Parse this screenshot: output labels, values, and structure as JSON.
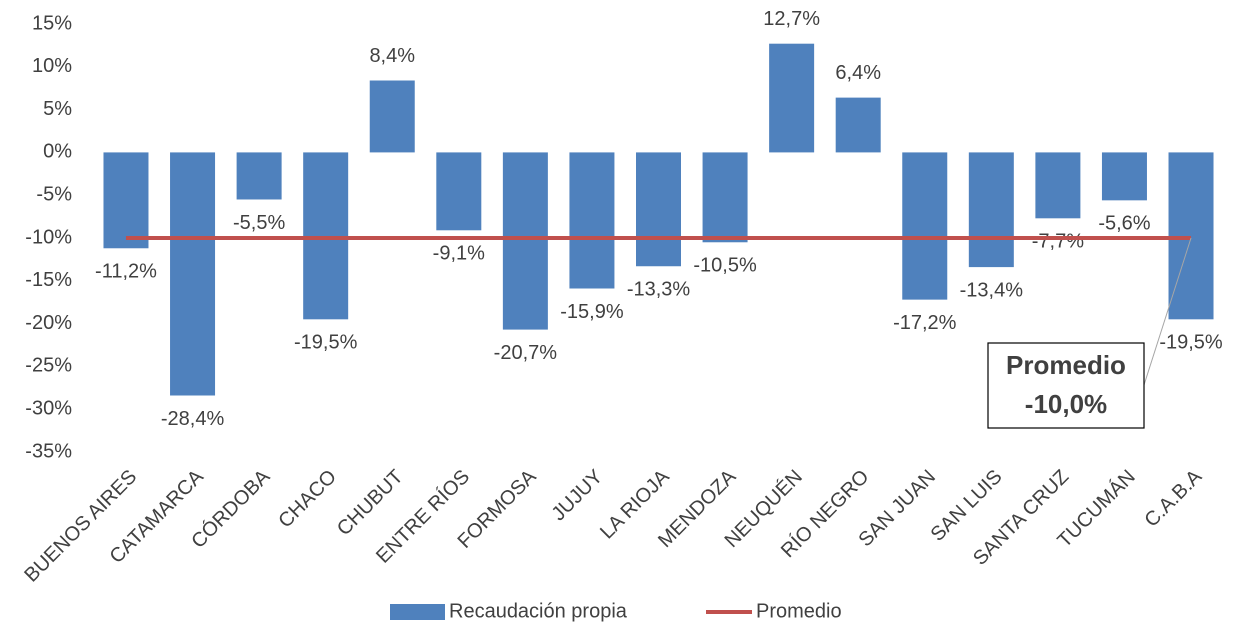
{
  "chart_data": {
    "type": "bar",
    "categories": [
      "BUENOS AIRES",
      "CATAMARCA",
      "CÓRDOBA",
      "CHACO",
      "CHUBUT",
      "ENTRE RÍOS",
      "FORMOSA",
      "JUJUY",
      "LA RIOJA",
      "MENDOZA",
      "NEUQUÉN",
      "RÍO NEGRO",
      "SAN JUAN",
      "SAN LUIS",
      "SANTA CRUZ",
      "TUCUMÁN",
      "C.A.B.A"
    ],
    "series": [
      {
        "name": "Recaudación propia",
        "type": "bar",
        "color": "#4f81bd",
        "values": [
          -11.2,
          -28.4,
          -5.5,
          -19.5,
          8.4,
          -9.1,
          -20.7,
          -15.9,
          -13.3,
          -10.5,
          12.7,
          6.4,
          -17.2,
          -13.4,
          -7.7,
          -5.6,
          -19.5
        ],
        "value_labels": [
          "-11,2%",
          "-28,4%",
          "-5,5%",
          "-19,5%",
          "8,4%",
          "-9,1%",
          "-20,7%",
          "-15,9%",
          "-13,3%",
          "-10,5%",
          "12,7%",
          "6,4%",
          "-17,2%",
          "-13,4%",
          "-7,7%",
          "-5,6%",
          "-19,5%"
        ]
      },
      {
        "name": "Promedio",
        "type": "line",
        "color": "#c0504d",
        "values": [
          -10,
          -10,
          -10,
          -10,
          -10,
          -10,
          -10,
          -10,
          -10,
          -10,
          -10,
          -10,
          -10,
          -10,
          -10,
          -10,
          -10
        ]
      }
    ],
    "ylim": [
      -35,
      15
    ],
    "yticks": [
      {
        "value": 15,
        "label": "15%"
      },
      {
        "value": 10,
        "label": "10%"
      },
      {
        "value": 5,
        "label": "5%"
      },
      {
        "value": 0,
        "label": "0%"
      },
      {
        "value": -5,
        "label": "-5%"
      },
      {
        "value": -10,
        "label": "-10%"
      },
      {
        "value": -15,
        "label": "-15%"
      },
      {
        "value": -20,
        "label": "-20%"
      },
      {
        "value": -25,
        "label": "-25%"
      },
      {
        "value": -30,
        "label": "-30%"
      },
      {
        "value": -35,
        "label": "-35%"
      }
    ],
    "grid": false,
    "annotation": {
      "label": "Promedio",
      "value": -10,
      "value_label": "-10,0%"
    },
    "legend": "bottom"
  }
}
